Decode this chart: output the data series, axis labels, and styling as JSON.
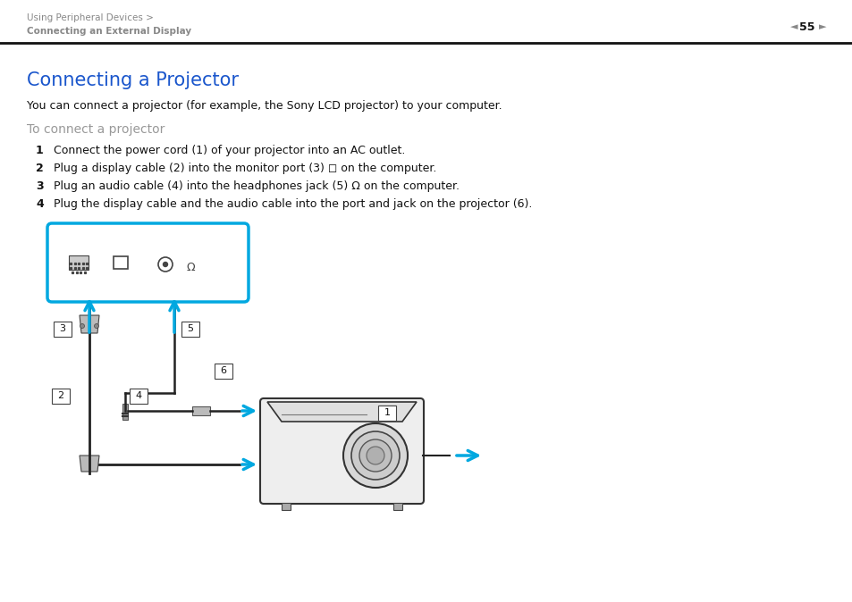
{
  "bg_color": "#ffffff",
  "header_text1": "Using Peripheral Devices >",
  "header_text2": "Connecting an External Display",
  "header_color": "#888888",
  "page_num": "55",
  "title": "Connecting a Projector",
  "title_color": "#1a56cc",
  "body_text": "You can connect a projector (for example, the Sony LCD projector) to your computer.",
  "subtitle": "To connect a projector",
  "subtitle_color": "#999999",
  "steps": [
    "Connect the power cord (1) of your projector into an AC outlet.",
    "Plug a display cable (2) into the monitor port (3) ◻ on the computer.",
    "Plug an audio cable (4) into the headphones jack (5) Ω on the computer.",
    "Plug the display cable and the audio cable into the port and jack on the projector (6)."
  ],
  "cyan_color": "#00a8e0",
  "dark_color": "#222222",
  "gray_color": "#888888",
  "light_gray": "#dddddd",
  "med_gray": "#aaaaaa"
}
